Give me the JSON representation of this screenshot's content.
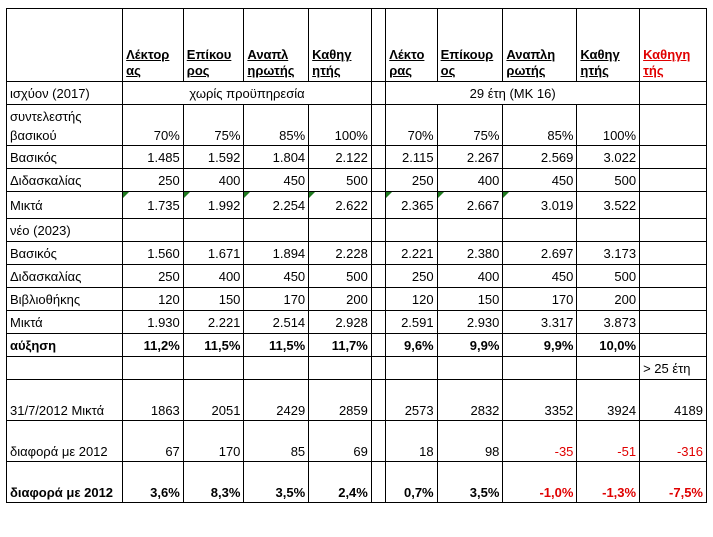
{
  "headers": [
    "Λέκτορας",
    "Επίκουρος",
    "Αναπληρωτής",
    "Καθηγητής",
    "Λέκτορας",
    "Επίκουρος",
    "Αναπληρωτής",
    "Καθηγητής",
    "Καθηγητής"
  ],
  "header_display": [
    "Λέκτορ ας",
    "Επίκου ρος",
    "Αναπλ ηρωτής",
    "Καθηγ ητής",
    "Λέκτο ρας",
    "Επίκουρ ος",
    "Αναπλη ρωτής",
    "Καθηγ ητής",
    "Καθηγη τής"
  ],
  "section_2017": {
    "label": "ισχύον (2017)",
    "group1": "χωρίς προϋπηρεσία",
    "group2": "29 έτη (ΜΚ 16)"
  },
  "coef": {
    "label": "συντελεστής βασικού",
    "values": [
      "70%",
      "75%",
      "85%",
      "100%",
      "70%",
      "75%",
      "85%",
      "100%"
    ]
  },
  "rows2017": [
    {
      "label": "Βασικός",
      "values": [
        "1.485",
        "1.592",
        "1.804",
        "2.122",
        "2.115",
        "2.267",
        "2.569",
        "3.022"
      ]
    },
    {
      "label": "Διδασκαλίας",
      "values": [
        "250",
        "400",
        "450",
        "500",
        "250",
        "400",
        "450",
        "500"
      ]
    },
    {
      "label": "Μικτά",
      "values": [
        "1.735",
        "1.992",
        "2.254",
        "2.622",
        "2.365",
        "2.667",
        "3.019",
        "3.522"
      ]
    }
  ],
  "section_2023": {
    "label": "νέο (2023)"
  },
  "rows2023": [
    {
      "label": "Βασικός",
      "values": [
        "1.560",
        "1.671",
        "1.894",
        "2.228",
        "2.221",
        "2.380",
        "2.697",
        "3.173"
      ]
    },
    {
      "label": "Διδασκαλίας",
      "values": [
        "250",
        "400",
        "450",
        "500",
        "250",
        "400",
        "450",
        "500"
      ]
    },
    {
      "label": "Βιβλιοθήκης",
      "values": [
        "120",
        "150",
        "170",
        "200",
        "120",
        "150",
        "170",
        "200"
      ]
    },
    {
      "label": "Μικτά",
      "values": [
        "1.930",
        "2.221",
        "2.514",
        "2.928",
        "2.591",
        "2.930",
        "3.317",
        "3.873"
      ]
    }
  ],
  "increase": {
    "label": "αύξηση",
    "values": [
      "11,2%",
      "11,5%",
      "11,5%",
      "11,7%",
      "9,6%",
      "9,9%",
      "9,9%",
      "10,0%"
    ]
  },
  "over25": "> 25 έτη",
  "r2012": {
    "label": "31/7/2012 Μικτά",
    "values": [
      "1863",
      "2051",
      "2429",
      "2859",
      "2573",
      "2832",
      "3352",
      "3924",
      "4189"
    ]
  },
  "diff": {
    "label": "διαφορά με 2012",
    "values": [
      "67",
      "170",
      "85",
      "69",
      "18",
      "98",
      "-35",
      "-51",
      "-316"
    ]
  },
  "diffpct": {
    "label": "διαφορά με 2012",
    "values": [
      "3,6%",
      "8,3%",
      "3,5%",
      "2,4%",
      "0,7%",
      "3,5%",
      "-1,0%",
      "-1,3%",
      "-7,5%"
    ]
  }
}
